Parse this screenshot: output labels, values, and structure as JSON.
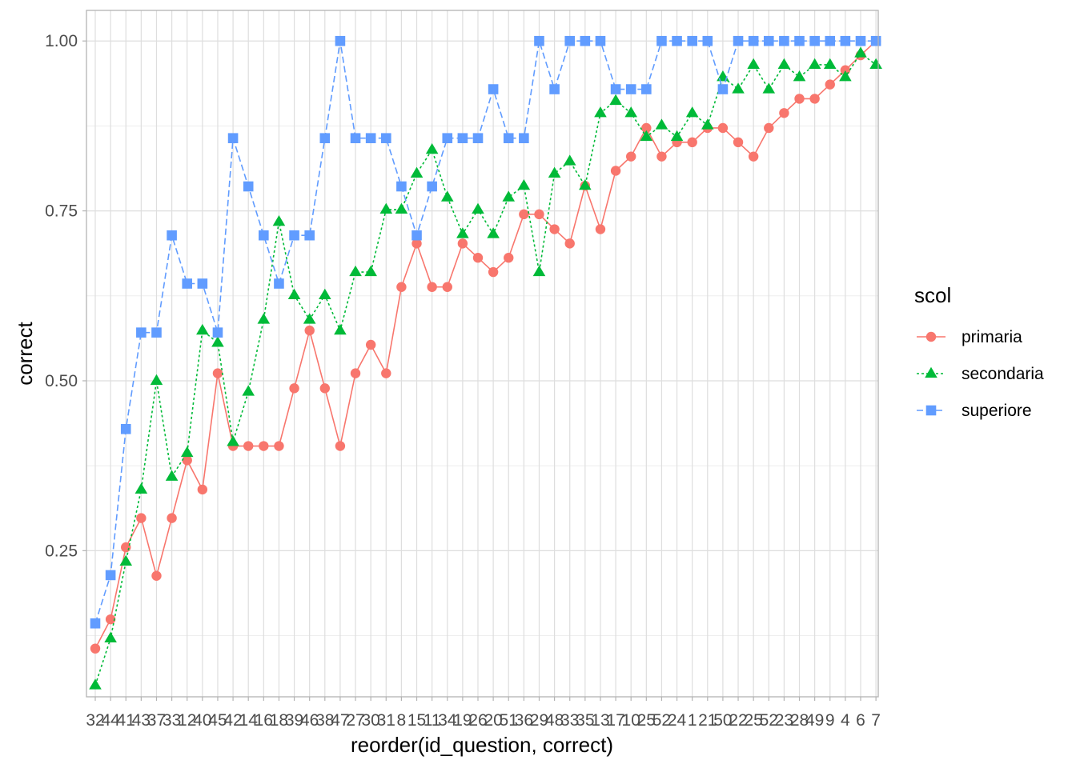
{
  "chart_data": {
    "type": "line",
    "xlabel": "reorder(id_question, correct)",
    "ylabel": "correct",
    "ylim": [
      0.035,
      1.045
    ],
    "yticks": [
      0.25,
      0.5,
      0.75,
      1.0
    ],
    "ytick_labels": [
      "0.25",
      "0.50",
      "0.75",
      "1.00"
    ],
    "grid": true,
    "legend_title": "scol",
    "legend_position": "right",
    "categories": [
      "32",
      "44",
      "41",
      "43",
      "37",
      "33",
      "12",
      "40",
      "45",
      "42",
      "14",
      "16",
      "18",
      "39",
      "46",
      "38",
      "47",
      "27",
      "30",
      "31",
      "8",
      "15",
      "11",
      "34",
      "19",
      "26",
      "20",
      "51",
      "36",
      "29",
      "48",
      "33",
      "35",
      "13",
      "17",
      "10",
      "25",
      "52",
      "24",
      "1",
      "21",
      "50",
      "22",
      "25",
      "52",
      "23",
      "28",
      "49",
      "9",
      "4",
      "6",
      "7"
    ],
    "category_labels": [
      "32",
      "44",
      "41",
      "43",
      "37",
      "33",
      "12",
      "40",
      "45",
      "42",
      "14",
      "16",
      "18",
      "39",
      "46",
      "38",
      "47",
      "27",
      "30",
      "31",
      "8",
      "15",
      "11",
      "34",
      "19",
      "26",
      "20",
      "51",
      "36",
      "29",
      "48",
      "33",
      "35",
      "13",
      "17",
      "10",
      "25",
      "52",
      "24",
      "1",
      "21",
      "50",
      "22",
      "25",
      "52",
      "23",
      "28",
      "49",
      "9",
      "4",
      "6",
      "7"
    ],
    "series": [
      {
        "name": "primaria",
        "color": "#F8766D",
        "marker": "circle",
        "dash": "solid",
        "values": [
          0.106,
          0.149,
          0.255,
          0.298,
          0.213,
          0.298,
          0.383,
          0.34,
          0.511,
          0.404,
          0.404,
          0.404,
          0.404,
          0.489,
          0.574,
          0.489,
          0.404,
          0.511,
          0.553,
          0.511,
          0.638,
          0.702,
          0.638,
          0.638,
          0.702,
          0.681,
          0.66,
          0.681,
          0.745,
          0.745,
          0.723,
          0.702,
          0.787,
          0.723,
          0.809,
          0.83,
          0.872,
          0.83,
          0.851,
          0.851,
          0.872,
          0.872,
          0.851,
          0.83,
          0.872,
          0.894,
          0.915,
          0.915,
          0.936,
          0.957,
          0.979,
          1.0
        ]
      },
      {
        "name": "secondaria",
        "color": "#00BA38",
        "marker": "triangle",
        "dash": "dotted",
        "values": [
          0.052,
          0.121,
          0.234,
          0.34,
          0.5,
          0.359,
          0.394,
          0.574,
          0.556,
          0.41,
          0.484,
          0.59,
          0.734,
          0.626,
          0.59,
          0.626,
          0.574,
          0.66,
          0.66,
          0.752,
          0.752,
          0.805,
          0.84,
          0.77,
          0.716,
          0.752,
          0.716,
          0.77,
          0.787,
          0.66,
          0.805,
          0.823,
          0.787,
          0.894,
          0.912,
          0.894,
          0.859,
          0.876,
          0.859,
          0.894,
          0.876,
          0.947,
          0.929,
          0.965,
          0.929,
          0.965,
          0.947,
          0.965,
          0.965,
          0.947,
          0.982,
          0.965
        ]
      },
      {
        "name": "superiore",
        "color": "#619CFF",
        "marker": "square",
        "dash": "dashed",
        "values": [
          0.143,
          0.214,
          0.429,
          0.571,
          0.571,
          0.714,
          0.643,
          0.643,
          0.571,
          0.857,
          0.786,
          0.714,
          0.643,
          0.714,
          0.714,
          0.857,
          1.0,
          0.857,
          0.857,
          0.857,
          0.786,
          0.714,
          0.786,
          0.857,
          0.857,
          0.857,
          0.929,
          0.857,
          0.857,
          1.0,
          0.929,
          1.0,
          1.0,
          1.0,
          0.929,
          0.929,
          0.929,
          1.0,
          1.0,
          1.0,
          1.0,
          0.929,
          1.0,
          1.0,
          1.0,
          1.0,
          1.0,
          1.0,
          1.0,
          1.0,
          1.0,
          1.0
        ]
      }
    ]
  }
}
